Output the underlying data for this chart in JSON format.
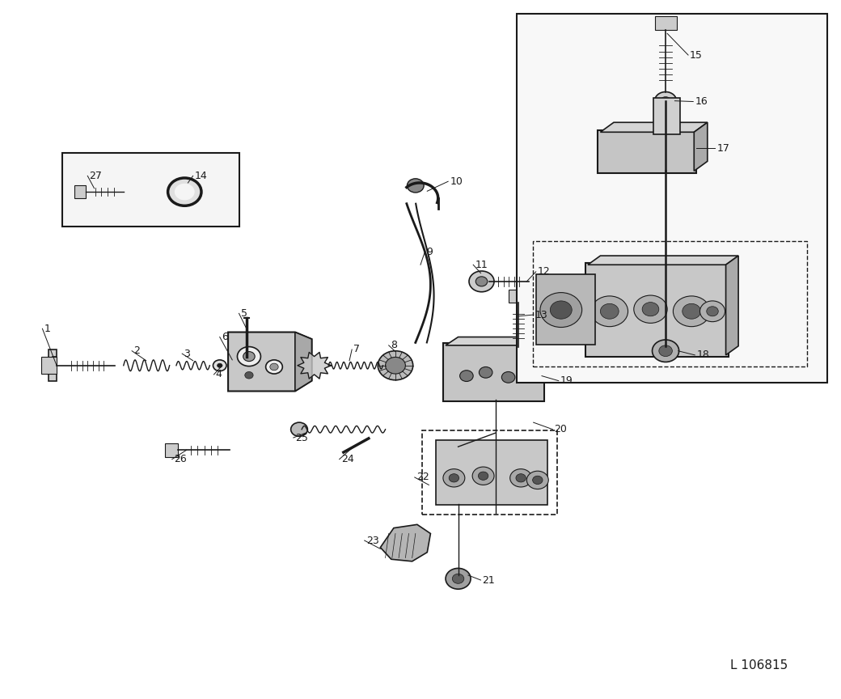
{
  "bg_color": "#ffffff",
  "line_color": "#1a1a1a",
  "fig_width": 10.4,
  "fig_height": 8.64,
  "watermark": "L 106815"
}
